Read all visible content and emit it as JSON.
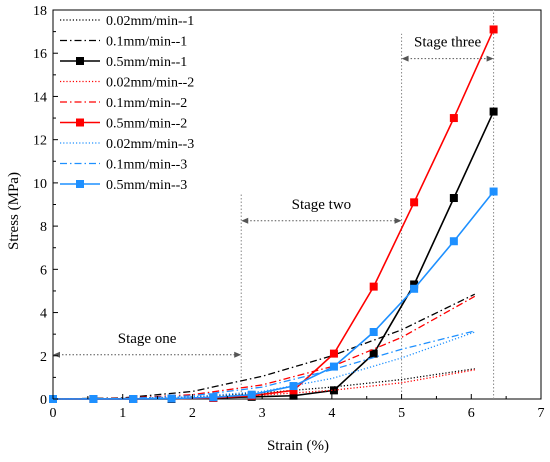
{
  "chart_data": {
    "type": "line",
    "xlabel": "Strain (%)",
    "ylabel": "Stress (MPa)",
    "xlim": [
      0,
      7
    ],
    "ylim": [
      0,
      18
    ],
    "xticks": [
      "0",
      "1",
      "2",
      "3",
      "4",
      "5",
      "6",
      "7"
    ],
    "yticks": [
      "0",
      "2",
      "4",
      "6",
      "8",
      "10",
      "12",
      "14",
      "16",
      "18"
    ],
    "grid": false,
    "legend_position": "top-left",
    "series": [
      {
        "name": "0.02mm/min--1",
        "color": "#000000",
        "style": "dotted",
        "marker": "none",
        "x": [
          0,
          1,
          2,
          3,
          4,
          5,
          6.05
        ],
        "y": [
          0,
          0.02,
          0.1,
          0.28,
          0.55,
          0.9,
          1.4
        ]
      },
      {
        "name": "0.1mm/min--1",
        "color": "#000000",
        "style": "dashdot",
        "marker": "none",
        "x": [
          0,
          1,
          2,
          3,
          4,
          5,
          6.05
        ],
        "y": [
          0,
          0.05,
          0.35,
          1.05,
          2.0,
          3.2,
          4.85
        ]
      },
      {
        "name": "0.5mm/min--1",
        "color": "#000000",
        "style": "solid",
        "marker": "square",
        "x": [
          0,
          0.58,
          1.15,
          1.7,
          2.3,
          2.85,
          3.45,
          4.03,
          4.6,
          5.18,
          5.75,
          6.32
        ],
        "y": [
          0,
          0,
          0,
          0,
          0.05,
          0.1,
          0.15,
          0.4,
          2.1,
          5.3,
          9.3,
          13.3
        ]
      },
      {
        "name": "0.02mm/min--2",
        "color": "#ff0000",
        "style": "dotted",
        "marker": "none",
        "x": [
          0,
          1,
          2,
          3,
          4,
          5,
          6.05
        ],
        "y": [
          0,
          0.01,
          0.06,
          0.18,
          0.4,
          0.75,
          1.35
        ]
      },
      {
        "name": "0.1mm/min--2",
        "color": "#ff0000",
        "style": "dashdot",
        "marker": "none",
        "x": [
          0,
          1,
          2,
          3,
          4,
          5,
          6.05
        ],
        "y": [
          0,
          0.03,
          0.2,
          0.65,
          1.5,
          2.85,
          4.75
        ]
      },
      {
        "name": "0.5mm/min--2",
        "color": "#ff0000",
        "style": "solid",
        "marker": "square",
        "x": [
          0,
          0.58,
          1.15,
          1.7,
          2.3,
          2.85,
          3.45,
          4.03,
          4.6,
          5.18,
          5.75,
          6.32
        ],
        "y": [
          0,
          0,
          0,
          0.02,
          0.05,
          0.15,
          0.4,
          2.1,
          5.2,
          9.1,
          13.0,
          17.1
        ]
      },
      {
        "name": "0.02mm/min--3",
        "color": "#1e90ff",
        "style": "dotted",
        "marker": "none",
        "x": [
          0,
          1,
          2,
          3,
          4,
          5,
          6.05
        ],
        "y": [
          0,
          0.02,
          0.1,
          0.35,
          0.95,
          1.9,
          3.1
        ]
      },
      {
        "name": "0.1mm/min--3",
        "color": "#1e90ff",
        "style": "dashdot",
        "marker": "none",
        "x": [
          0,
          1,
          2,
          3,
          4,
          5,
          6.05
        ],
        "y": [
          0,
          0.02,
          0.15,
          0.55,
          1.35,
          2.3,
          3.15
        ]
      },
      {
        "name": "0.5mm/min--3",
        "color": "#1e90ff",
        "style": "solid",
        "marker": "square",
        "x": [
          0,
          0.58,
          1.15,
          1.7,
          2.3,
          2.85,
          3.45,
          4.03,
          4.6,
          5.18,
          5.75,
          6.32
        ],
        "y": [
          0,
          0,
          0,
          0.02,
          0.08,
          0.2,
          0.6,
          1.5,
          3.1,
          5.1,
          7.3,
          9.6
        ]
      }
    ],
    "annotations": [
      {
        "text": "Stage one",
        "x_start": 0,
        "x_end": 2.7,
        "y": 2.05,
        "label_x": 1.35,
        "label_y": 2.6
      },
      {
        "text": "Stage two",
        "x_start": 2.7,
        "x_end": 5.0,
        "y": 8.25,
        "label_x": 3.85,
        "label_y": 8.8
      },
      {
        "text": "Stage three",
        "x_start": 5.0,
        "x_end": 6.32,
        "y": 15.75,
        "label_x": 5.66,
        "label_y": 16.3
      }
    ],
    "boundary_lines": [
      {
        "x": 2.7,
        "y_top": 9.5
      },
      {
        "x": 5.0,
        "y_top": 16.9
      },
      {
        "x": 6.32,
        "y_top": 18.0
      }
    ]
  }
}
